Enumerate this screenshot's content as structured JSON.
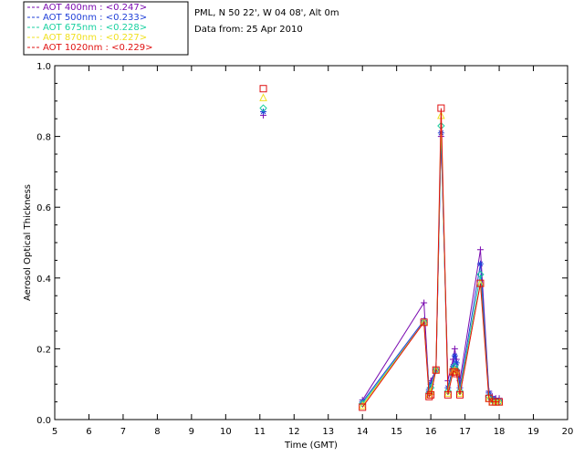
{
  "chart_data": {
    "type": "line",
    "title_lines": [
      "PML, N 50 22', W 04 08', Alt 0m",
      "Data from: 25 Apr 2010"
    ],
    "xlabel": "Time (GMT)",
    "ylabel": "Aerosol Optical Thickness",
    "xlim": [
      5,
      20
    ],
    "ylim": [
      0,
      1.0
    ],
    "xticks": [
      "5",
      "6",
      "7",
      "8",
      "9",
      "10",
      "11",
      "12",
      "13",
      "14",
      "15",
      "16",
      "17",
      "18",
      "19",
      "20"
    ],
    "yticks": [
      "0.0",
      "0.2",
      "0.4",
      "0.6",
      "0.8",
      "1.0"
    ],
    "grid": false,
    "legend_position": "top-left",
    "series": [
      {
        "name": "AOT  400nm : <0.247>",
        "color": "#7a0ab0",
        "marker": "plus",
        "x": [
          11.1,
          14.0,
          15.8,
          15.95,
          16.0,
          16.15,
          16.3,
          16.5,
          16.65,
          16.7,
          16.75,
          16.85,
          17.45,
          17.7,
          17.8,
          17.9,
          18.0
        ],
        "y": [
          0.86,
          0.055,
          0.33,
          0.08,
          0.11,
          0.14,
          0.8,
          0.11,
          0.17,
          0.2,
          0.17,
          0.11,
          0.48,
          0.08,
          0.065,
          0.06,
          0.06
        ]
      },
      {
        "name": "AOT  500nm : <0.233>",
        "color": "#1f3fd8",
        "marker": "asterisk",
        "x": [
          11.1,
          14.0,
          15.8,
          15.95,
          16.0,
          16.15,
          16.3,
          16.5,
          16.65,
          16.7,
          16.75,
          16.85,
          17.45,
          17.7,
          17.8,
          17.9,
          18.0
        ],
        "y": [
          0.87,
          0.05,
          0.28,
          0.085,
          0.1,
          0.14,
          0.81,
          0.09,
          0.15,
          0.18,
          0.16,
          0.09,
          0.44,
          0.075,
          0.06,
          0.055,
          0.055
        ]
      },
      {
        "name": "AOT  675nm : <0.228>",
        "color": "#18d0a0",
        "marker": "diamond",
        "x": [
          11.1,
          14.0,
          15.8,
          15.95,
          16.0,
          16.15,
          16.3,
          16.5,
          16.65,
          16.7,
          16.75,
          16.85,
          17.45,
          17.7,
          17.8,
          17.9,
          18.0
        ],
        "y": [
          0.88,
          0.045,
          0.275,
          0.075,
          0.09,
          0.14,
          0.83,
          0.08,
          0.14,
          0.15,
          0.14,
          0.08,
          0.41,
          0.065,
          0.055,
          0.05,
          0.05
        ]
      },
      {
        "name": "AOT  870nm : <0.227>",
        "color": "#f0e020",
        "marker": "triangle",
        "x": [
          11.1,
          14.0,
          15.8,
          15.95,
          16.0,
          16.15,
          16.3,
          16.5,
          16.65,
          16.7,
          16.75,
          16.85,
          17.45,
          17.7,
          17.8,
          17.9,
          18.0
        ],
        "y": [
          0.91,
          0.04,
          0.275,
          0.07,
          0.08,
          0.14,
          0.86,
          0.075,
          0.135,
          0.14,
          0.135,
          0.075,
          0.385,
          0.06,
          0.05,
          0.05,
          0.05
        ]
      },
      {
        "name": "AOT 1020nm : <0.229>",
        "color": "#e01010",
        "marker": "square",
        "x": [
          11.1,
          14.0,
          15.8,
          15.95,
          16.0,
          16.15,
          16.3,
          16.5,
          16.65,
          16.7,
          16.75,
          16.85,
          17.45,
          17.7,
          17.8,
          17.9,
          18.0
        ],
        "y": [
          0.935,
          0.035,
          0.275,
          0.065,
          0.07,
          0.14,
          0.88,
          0.07,
          0.135,
          0.135,
          0.13,
          0.07,
          0.385,
          0.06,
          0.05,
          0.05,
          0.05
        ]
      }
    ]
  }
}
